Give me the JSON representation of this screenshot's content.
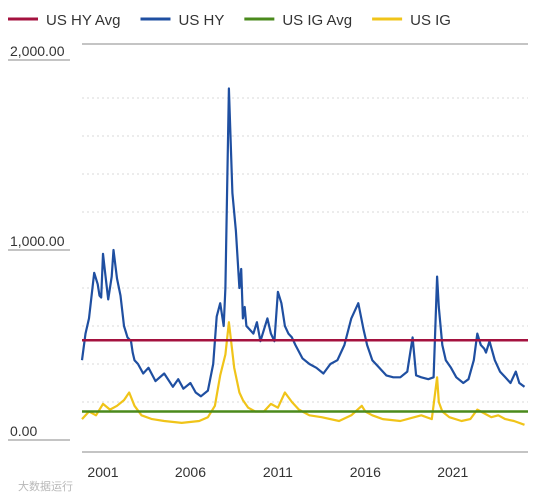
{
  "chart_data": {
    "type": "line",
    "title": "",
    "xlabel": "",
    "ylabel": "",
    "x_ticks": [
      "2001",
      "2006",
      "2011",
      "2016",
      "2021"
    ],
    "y_ticks": [
      "0.00",
      "1,000.00",
      "2,000.00"
    ],
    "xlim": [
      1999.8,
      2025.3
    ],
    "ylim": [
      0,
      2000
    ],
    "grid": true,
    "legend_position": "top",
    "series": [
      {
        "name": "US HY Avg",
        "color": "#a4123f",
        "type": "hline",
        "y": 525
      },
      {
        "name": "US HY",
        "color": "#1f4fa1",
        "x": [
          1999.8,
          2000.0,
          2000.2,
          2000.5,
          2000.7,
          2000.8,
          2000.9,
          2001.0,
          2001.1,
          2001.3,
          2001.5,
          2001.6,
          2001.8,
          2002.0,
          2002.2,
          2002.4,
          2002.6,
          2002.7,
          2002.8,
          2003.0,
          2003.3,
          2003.6,
          2004.0,
          2004.5,
          2005.0,
          2005.3,
          2005.6,
          2006.0,
          2006.3,
          2006.6,
          2007.0,
          2007.3,
          2007.5,
          2007.7,
          2007.9,
          2008.0,
          2008.2,
          2008.4,
          2008.6,
          2008.8,
          2008.9,
          2009.0,
          2009.1,
          2009.2,
          2009.4,
          2009.6,
          2009.8,
          2010.0,
          2010.2,
          2010.4,
          2010.6,
          2010.8,
          2011.0,
          2011.2,
          2011.4,
          2011.6,
          2011.8,
          2012.0,
          2012.4,
          2012.8,
          2013.2,
          2013.6,
          2014.0,
          2014.4,
          2014.8,
          2015.2,
          2015.6,
          2015.9,
          2016.1,
          2016.4,
          2016.8,
          2017.2,
          2017.6,
          2018.0,
          2018.4,
          2018.7,
          2018.9,
          2019.2,
          2019.6,
          2019.9,
          2020.1,
          2020.2,
          2020.4,
          2020.6,
          2020.9,
          2021.2,
          2021.6,
          2021.9,
          2022.2,
          2022.4,
          2022.6,
          2022.8,
          2022.9,
          2023.1,
          2023.4,
          2023.7,
          2024.0,
          2024.3,
          2024.6,
          2024.8,
          2025.1
        ],
        "values": [
          420,
          560,
          640,
          880,
          820,
          760,
          750,
          980,
          900,
          740,
          860,
          1000,
          850,
          760,
          600,
          540,
          520,
          460,
          420,
          400,
          350,
          380,
          310,
          350,
          280,
          320,
          270,
          300,
          250,
          230,
          260,
          400,
          650,
          720,
          600,
          800,
          1850,
          1300,
          1100,
          800,
          900,
          640,
          700,
          600,
          580,
          560,
          620,
          520,
          580,
          640,
          560,
          520,
          780,
          720,
          600,
          560,
          540,
          500,
          430,
          400,
          380,
          350,
          400,
          420,
          500,
          640,
          720,
          580,
          500,
          420,
          380,
          340,
          330,
          330,
          360,
          540,
          340,
          330,
          320,
          330,
          860,
          700,
          500,
          420,
          380,
          330,
          300,
          320,
          420,
          560,
          500,
          480,
          460,
          520,
          420,
          360,
          330,
          300,
          360,
          300,
          280
        ]
      },
      {
        "name": "US IG Avg",
        "color": "#4a8a1c",
        "type": "hline",
        "y": 150
      },
      {
        "name": "US IG",
        "color": "#f0c419",
        "x": [
          1999.8,
          2000.2,
          2000.6,
          2001.0,
          2001.4,
          2001.8,
          2002.2,
          2002.5,
          2002.8,
          2003.2,
          2003.8,
          2004.5,
          2005.5,
          2006.5,
          2007.0,
          2007.4,
          2007.7,
          2008.0,
          2008.2,
          2008.5,
          2008.8,
          2009.0,
          2009.3,
          2009.7,
          2010.2,
          2010.6,
          2011.0,
          2011.4,
          2011.8,
          2012.2,
          2012.8,
          2013.5,
          2014.5,
          2015.2,
          2015.8,
          2016.0,
          2016.4,
          2017.0,
          2018.0,
          2018.8,
          2019.2,
          2019.8,
          2020.1,
          2020.2,
          2020.4,
          2020.8,
          2021.5,
          2022.0,
          2022.4,
          2022.8,
          2023.2,
          2023.6,
          2024.0,
          2024.5,
          2025.1
        ],
        "values": [
          110,
          150,
          130,
          190,
          160,
          180,
          210,
          250,
          180,
          130,
          110,
          100,
          90,
          100,
          120,
          180,
          340,
          450,
          620,
          380,
          250,
          210,
          170,
          150,
          150,
          190,
          170,
          250,
          200,
          160,
          130,
          120,
          100,
          130,
          180,
          150,
          130,
          110,
          100,
          120,
          130,
          110,
          330,
          200,
          150,
          120,
          100,
          110,
          160,
          140,
          120,
          130,
          110,
          100,
          80
        ]
      }
    ]
  },
  "watermark": "大数据运行"
}
